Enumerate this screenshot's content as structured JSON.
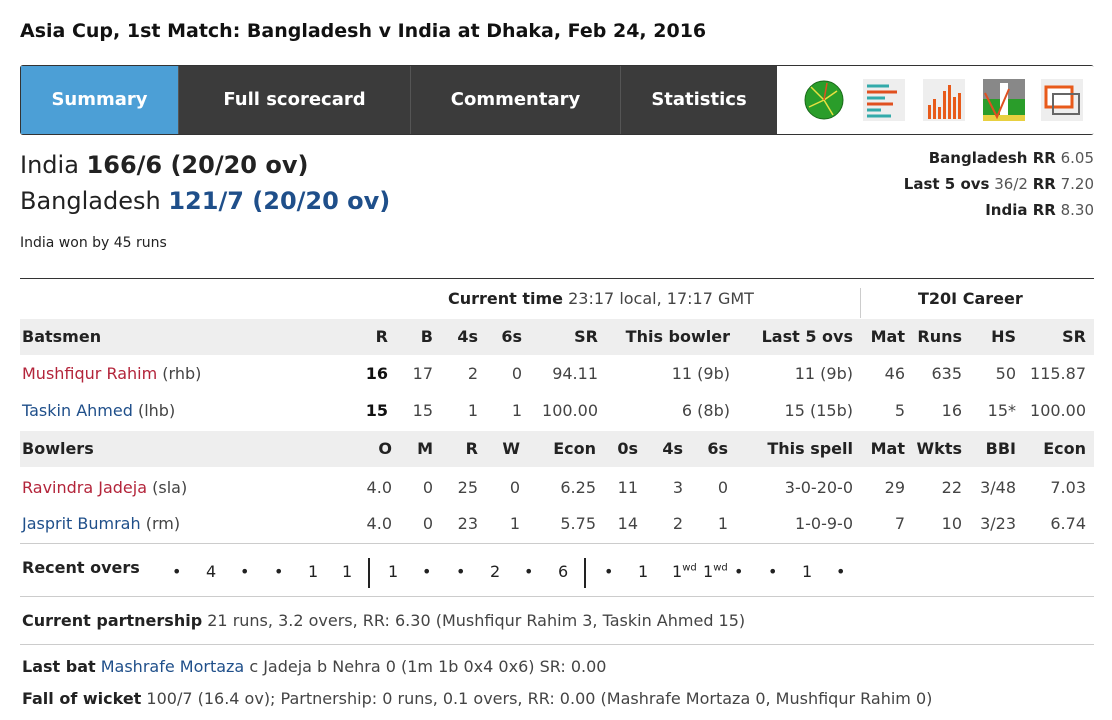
{
  "title": "Asia Cup, 1st Match: Bangladesh v India at Dhaka, Feb 24, 2016",
  "tabs": [
    {
      "label": "Summary",
      "active": true
    },
    {
      "label": "Full scorecard"
    },
    {
      "label": "Commentary"
    },
    {
      "label": "Statistics"
    }
  ],
  "icons": [
    "wagon-wheel-icon",
    "manhattan-list-icon",
    "bar-chart-icon",
    "worm-chart-icon",
    "windows-popup-icon"
  ],
  "scores": {
    "team1": "India",
    "team1_score": "166/6 (20/20 ov)",
    "team2": "Bangladesh",
    "team2_score": "121/7 (20/20 ov)",
    "result": "India won by 45 runs"
  },
  "run_rates": {
    "bd_label": "Bangladesh RR",
    "bd_value": "6.05",
    "last5_label": "Last 5 ovs",
    "last5_score": "36/2",
    "last5_rr_label": "RR",
    "last5_rr": "7.20",
    "ind_label": "India RR",
    "ind_value": "8.30"
  },
  "current_time_label": "Current time",
  "current_time": "23:17 local, 17:17 GMT",
  "career_label": "T20I Career",
  "batsmen": {
    "headers": [
      "Batsmen",
      "R",
      "B",
      "4s",
      "6s",
      "SR",
      "This bowler",
      "Last 5 ovs",
      "Mat",
      "Runs",
      "HS",
      "SR"
    ],
    "rows": [
      {
        "name": "Mushfiqur Rahim",
        "style": "(rhb)",
        "cells": [
          "16",
          "17",
          "2",
          "0",
          "94.11",
          "11 (9b)",
          "11 (9b)",
          "46",
          "635",
          "50",
          "115.87"
        ]
      },
      {
        "name": "Taskin Ahmed",
        "style": "(lhb)",
        "cells": [
          "15",
          "15",
          "1",
          "1",
          "100.00",
          "6 (8b)",
          "15 (15b)",
          "5",
          "16",
          "15*",
          "100.00"
        ]
      }
    ]
  },
  "bowlers": {
    "headers": [
      "Bowlers",
      "O",
      "M",
      "R",
      "W",
      "Econ",
      "0s",
      "4s",
      "6s",
      "This spell",
      "Mat",
      "Wkts",
      "BBI",
      "Econ"
    ],
    "rows": [
      {
        "name": "Ravindra Jadeja",
        "style": "(sla)",
        "cells": [
          "4.0",
          "0",
          "25",
          "0",
          "6.25",
          "11",
          "3",
          "0",
          "3-0-20-0",
          "29",
          "22",
          "3/48",
          "7.03"
        ]
      },
      {
        "name": "Jasprit Bumrah",
        "style": "(rm)",
        "cells": [
          "4.0",
          "0",
          "23",
          "1",
          "5.75",
          "14",
          "2",
          "1",
          "1-0-9-0",
          "7",
          "10",
          "3/23",
          "6.74"
        ]
      }
    ]
  },
  "recent_overs": {
    "label": "Recent overs",
    "overs": [
      [
        "•",
        "4",
        "•",
        "•",
        "1",
        "1"
      ],
      [
        "1",
        "•",
        "•",
        "2",
        "•",
        "6"
      ],
      [
        "•",
        "1",
        "1wd",
        "1wd",
        "•",
        "•",
        "1",
        "•"
      ]
    ]
  },
  "partnership": {
    "label": "Current partnership",
    "text": "21 runs, 3.2 overs, RR: 6.30 (Mushfiqur Rahim 3, Taskin Ahmed 15)"
  },
  "last_bat": {
    "label": "Last bat",
    "name": "Mashrafe Mortaza",
    "text": "c Jadeja b Nehra 0 (1m 1b 0x4 0x6) SR: 0.00"
  },
  "fall_of_wicket": {
    "label": "Fall of wicket",
    "text": "100/7 (16.4 ov); Partnership: 0 runs, 0.1 overs, RR: 0.00 (Mashrafe Mortaza 0, Mushfiqur Rahim 0)"
  },
  "colors": {
    "tab_active": "#4c9fd6",
    "tab_bar": "#3b3b3b",
    "batsman_red": "#b3243a",
    "batsman_blue": "#1f4f8a"
  }
}
